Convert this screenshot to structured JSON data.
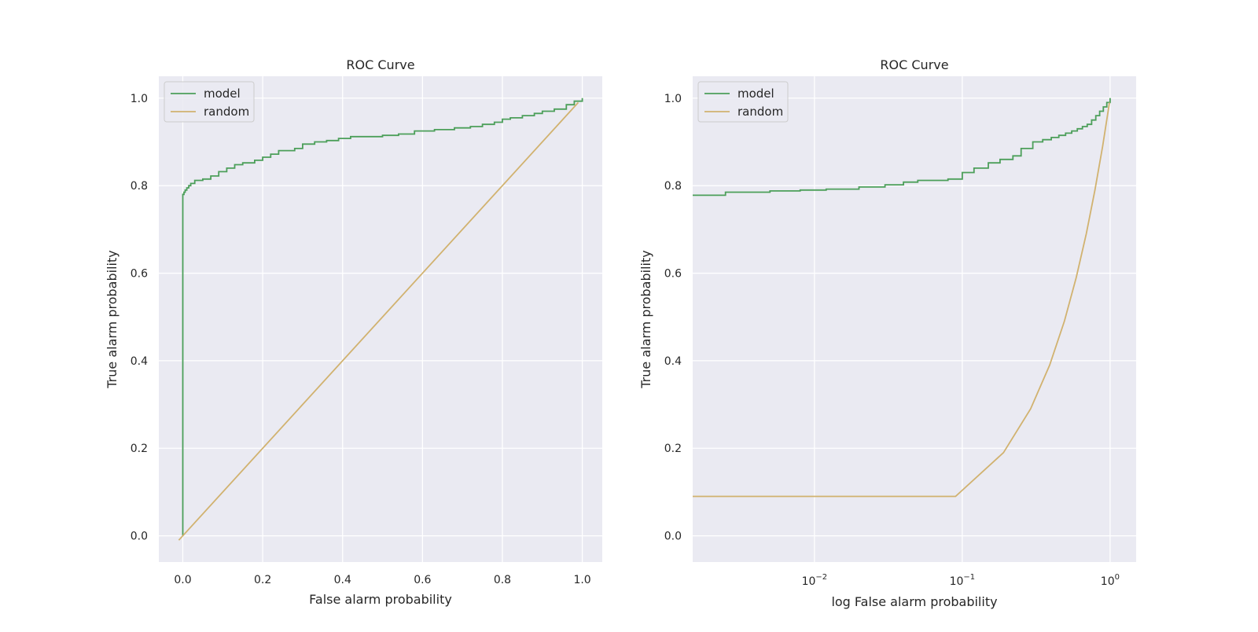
{
  "chart_data": [
    {
      "type": "line",
      "title": "ROC Curve",
      "xlabel": "False alarm probability",
      "ylabel": "True alarm probability",
      "xscale": "linear",
      "xlim": [
        -0.06,
        1.05
      ],
      "ylim": [
        -0.06,
        1.05
      ],
      "grid": true,
      "legend": "top-left",
      "xticks": [
        {
          "value": 0.0,
          "label": "0.0"
        },
        {
          "value": 0.2,
          "label": "0.2"
        },
        {
          "value": 0.4,
          "label": "0.4"
        },
        {
          "value": 0.6,
          "label": "0.6"
        },
        {
          "value": 0.8,
          "label": "0.8"
        },
        {
          "value": 1.0,
          "label": "1.0"
        }
      ],
      "yticks": [
        {
          "value": 0.0,
          "label": "0.0"
        },
        {
          "value": 0.2,
          "label": "0.2"
        },
        {
          "value": 0.4,
          "label": "0.4"
        },
        {
          "value": 0.6,
          "label": "0.6"
        },
        {
          "value": 0.8,
          "label": "0.8"
        },
        {
          "value": 1.0,
          "label": "1.0"
        }
      ],
      "series": [
        {
          "name": "model",
          "color": "#4c9f5a",
          "step": true,
          "x": [
            0.0,
            0.0,
            0.003,
            0.006,
            0.01,
            0.015,
            0.02,
            0.03,
            0.05,
            0.07,
            0.09,
            0.11,
            0.13,
            0.15,
            0.18,
            0.2,
            0.22,
            0.24,
            0.28,
            0.3,
            0.33,
            0.36,
            0.39,
            0.42,
            0.46,
            0.5,
            0.54,
            0.58,
            0.63,
            0.68,
            0.72,
            0.75,
            0.78,
            0.8,
            0.82,
            0.85,
            0.88,
            0.9,
            0.93,
            0.96,
            0.98,
            1.0
          ],
          "y": [
            0.0,
            0.78,
            0.785,
            0.79,
            0.795,
            0.8,
            0.805,
            0.812,
            0.815,
            0.822,
            0.832,
            0.84,
            0.848,
            0.852,
            0.858,
            0.865,
            0.872,
            0.88,
            0.885,
            0.895,
            0.9,
            0.903,
            0.908,
            0.912,
            0.912,
            0.915,
            0.918,
            0.925,
            0.928,
            0.932,
            0.935,
            0.94,
            0.945,
            0.952,
            0.955,
            0.96,
            0.965,
            0.97,
            0.975,
            0.985,
            0.993,
            1.0
          ]
        },
        {
          "name": "random",
          "color": "#d1b26f",
          "step": false,
          "x": [
            -0.01,
            0.99
          ],
          "y": [
            -0.01,
            0.99
          ]
        }
      ]
    },
    {
      "type": "line",
      "title": "ROC Curve",
      "xlabel": "log False alarm probability",
      "ylabel": "True alarm probability",
      "xscale": "log",
      "xlim": [
        0.0015,
        1.5
      ],
      "ylim": [
        -0.06,
        1.05
      ],
      "grid": true,
      "legend": "top-left",
      "xticks": [
        {
          "value": 0.01,
          "base": "10",
          "exp": "−2"
        },
        {
          "value": 0.1,
          "base": "10",
          "exp": "−1"
        },
        {
          "value": 1.0,
          "base": "10",
          "exp": "0"
        }
      ],
      "yticks": [
        {
          "value": 0.0,
          "label": "0.0"
        },
        {
          "value": 0.2,
          "label": "0.2"
        },
        {
          "value": 0.4,
          "label": "0.4"
        },
        {
          "value": 0.6,
          "label": "0.6"
        },
        {
          "value": 0.8,
          "label": "0.8"
        },
        {
          "value": 1.0,
          "label": "1.0"
        }
      ],
      "series": [
        {
          "name": "model",
          "color": "#4c9f5a",
          "step": true,
          "x": [
            0.0015,
            0.0025,
            0.005,
            0.008,
            0.012,
            0.02,
            0.03,
            0.04,
            0.05,
            0.08,
            0.1,
            0.12,
            0.15,
            0.18,
            0.22,
            0.25,
            0.3,
            0.35,
            0.4,
            0.45,
            0.5,
            0.55,
            0.6,
            0.65,
            0.7,
            0.75,
            0.8,
            0.85,
            0.9,
            0.95,
            1.0
          ],
          "y": [
            0.778,
            0.785,
            0.788,
            0.79,
            0.792,
            0.797,
            0.802,
            0.808,
            0.812,
            0.815,
            0.83,
            0.84,
            0.852,
            0.86,
            0.868,
            0.885,
            0.9,
            0.905,
            0.91,
            0.915,
            0.92,
            0.925,
            0.93,
            0.935,
            0.94,
            0.95,
            0.96,
            0.97,
            0.98,
            0.99,
            1.0
          ]
        },
        {
          "name": "random",
          "color": "#d1b26f",
          "step": false,
          "x": [
            0.0015,
            0.09,
            0.19,
            0.29,
            0.39,
            0.49,
            0.59,
            0.69,
            0.79,
            0.89,
            0.99
          ],
          "y": [
            0.09,
            0.09,
            0.19,
            0.29,
            0.39,
            0.49,
            0.59,
            0.69,
            0.79,
            0.89,
            0.99
          ]
        }
      ]
    }
  ]
}
